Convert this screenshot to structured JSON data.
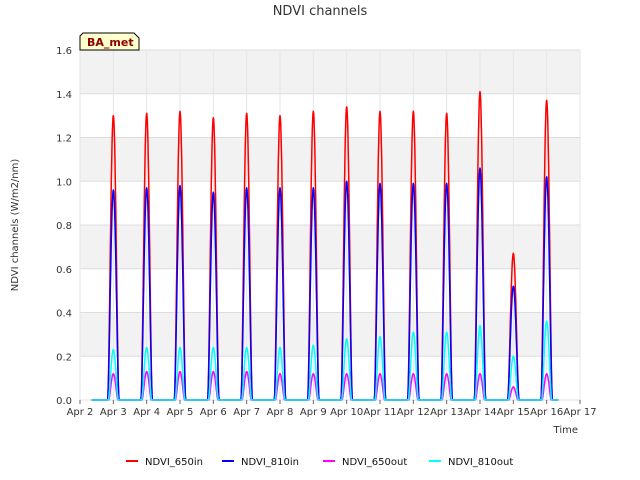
{
  "chart_data": {
    "type": "line",
    "title": "NDVI channels",
    "xlabel": "Time",
    "ylabel": "NDVI channels (W/m2/nm)",
    "badge": "BA_met",
    "ylim": [
      0,
      1.6
    ],
    "xlim": [
      2,
      17
    ],
    "yticks": [
      "0.0",
      "0.2",
      "0.4",
      "0.6",
      "0.8",
      "1.0",
      "1.2",
      "1.4",
      "1.6"
    ],
    "xticks": [
      "Apr 2",
      "Apr 3",
      "Apr 4",
      "Apr 5",
      "Apr 6",
      "Apr 7",
      "Apr 8",
      "Apr 9",
      "Apr 10",
      "Apr 11",
      "Apr 12",
      "Apr 13",
      "Apr 14",
      "Apr 15",
      "Apr 16",
      "Apr 17"
    ],
    "day_offsets": [
      3,
      4,
      5,
      6,
      7,
      8,
      9,
      10,
      11,
      12,
      13,
      14,
      15,
      16
    ],
    "series": [
      {
        "name": "NDVI_650in",
        "color": "#ff0000",
        "daily_peaks": [
          1.3,
          1.31,
          1.32,
          1.29,
          1.31,
          1.3,
          1.32,
          1.34,
          1.32,
          1.32,
          1.31,
          1.41,
          0.67,
          1.37
        ]
      },
      {
        "name": "NDVI_810in",
        "color": "#0000ff",
        "daily_peaks": [
          0.96,
          0.97,
          0.98,
          0.95,
          0.97,
          0.97,
          0.97,
          1.0,
          0.99,
          0.99,
          0.99,
          1.06,
          0.52,
          1.02
        ]
      },
      {
        "name": "NDVI_650out",
        "color": "#ff00ff",
        "daily_peaks": [
          0.12,
          0.13,
          0.13,
          0.13,
          0.13,
          0.12,
          0.12,
          0.12,
          0.12,
          0.12,
          0.12,
          0.12,
          0.06,
          0.12
        ]
      },
      {
        "name": "NDVI_810out",
        "color": "#00ffff",
        "daily_peaks": [
          0.23,
          0.24,
          0.24,
          0.24,
          0.24,
          0.24,
          0.25,
          0.28,
          0.29,
          0.31,
          0.31,
          0.34,
          0.2,
          0.36
        ]
      }
    ],
    "legend_position": "bottom"
  }
}
